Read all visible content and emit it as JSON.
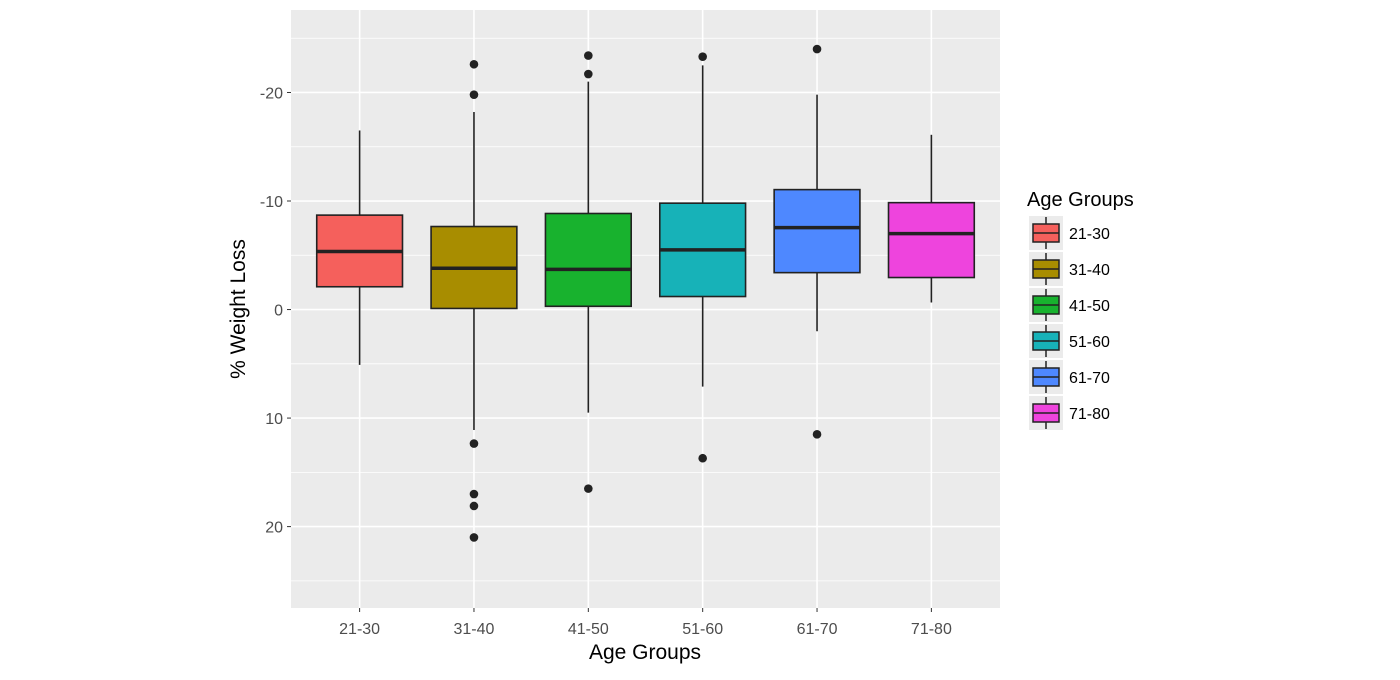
{
  "chart_data": {
    "type": "boxplot",
    "title": "",
    "xlabel": "Age Groups",
    "ylabel": "% Weight Loss",
    "y_axis_reversed": true,
    "ylim": [
      -27.6,
      27.5
    ],
    "yticks": [
      -20,
      -10,
      0,
      10,
      20
    ],
    "ytick_labels": [
      "-20",
      "-10",
      "0",
      "10",
      "20"
    ],
    "grid": true,
    "legend": {
      "title": "Age Groups",
      "position": "right"
    },
    "categories": [
      "21-30",
      "31-40",
      "41-50",
      "51-60",
      "61-70",
      "71-80"
    ],
    "colors": [
      "#F5605C",
      "#A88D00",
      "#18B22E",
      "#17B2B8",
      "#4E88FF",
      "#EE44DD"
    ],
    "boxes": [
      {
        "category": "21-30",
        "whisker_low": -16.5,
        "q1": -8.7,
        "median": -5.35,
        "q3": -2.1,
        "whisker_high": 5.1,
        "outliers": []
      },
      {
        "category": "31-40",
        "whisker_low": -18.2,
        "q1": -7.65,
        "median": -3.8,
        "q3": -0.1,
        "whisker_high": 11.1,
        "outliers": [
          -22.6,
          -19.8,
          12.35,
          17.0,
          18.1,
          21.0
        ]
      },
      {
        "category": "41-50",
        "whisker_low": -21.0,
        "q1": -8.85,
        "median": -3.7,
        "q3": -0.3,
        "whisker_high": 9.5,
        "outliers": [
          -23.4,
          -21.7,
          16.5
        ]
      },
      {
        "category": "51-60",
        "whisker_low": -22.5,
        "q1": -9.8,
        "median": -5.5,
        "q3": -1.2,
        "whisker_high": 7.1,
        "outliers": [
          -23.3,
          13.7
        ]
      },
      {
        "category": "61-70",
        "whisker_low": -19.8,
        "q1": -11.05,
        "median": -7.55,
        "q3": -3.4,
        "whisker_high": 2.0,
        "outliers": [
          -24.0,
          11.5
        ]
      },
      {
        "category": "71-80",
        "whisker_low": -16.1,
        "q1": -9.85,
        "median": -7.0,
        "q3": -2.95,
        "whisker_high": -0.65,
        "outliers": []
      }
    ]
  }
}
